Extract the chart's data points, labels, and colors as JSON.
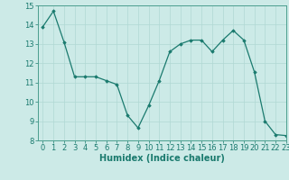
{
  "x": [
    0,
    1,
    2,
    3,
    4,
    5,
    6,
    7,
    8,
    9,
    10,
    11,
    12,
    13,
    14,
    15,
    16,
    17,
    18,
    19,
    20,
    21,
    22,
    23
  ],
  "y": [
    13.9,
    14.7,
    13.1,
    11.3,
    11.3,
    11.3,
    11.1,
    10.9,
    9.3,
    8.65,
    9.8,
    11.1,
    12.6,
    13.0,
    13.2,
    13.2,
    12.6,
    13.2,
    13.7,
    13.2,
    11.55,
    9.0,
    8.3,
    8.25
  ],
  "line_color": "#1a7a6e",
  "marker_color": "#1a7a6e",
  "bg_color": "#cceae7",
  "grid_color": "#b0d8d4",
  "xlabel": "Humidex (Indice chaleur)",
  "ylim": [
    8,
    15
  ],
  "xlim": [
    -0.5,
    23
  ],
  "yticks": [
    8,
    9,
    10,
    11,
    12,
    13,
    14,
    15
  ],
  "xticks": [
    0,
    1,
    2,
    3,
    4,
    5,
    6,
    7,
    8,
    9,
    10,
    11,
    12,
    13,
    14,
    15,
    16,
    17,
    18,
    19,
    20,
    21,
    22,
    23
  ],
  "tick_color": "#1a7a6e",
  "xlabel_fontsize": 7.0,
  "tick_fontsize": 6.0,
  "spine_color": "#4a9e8e"
}
